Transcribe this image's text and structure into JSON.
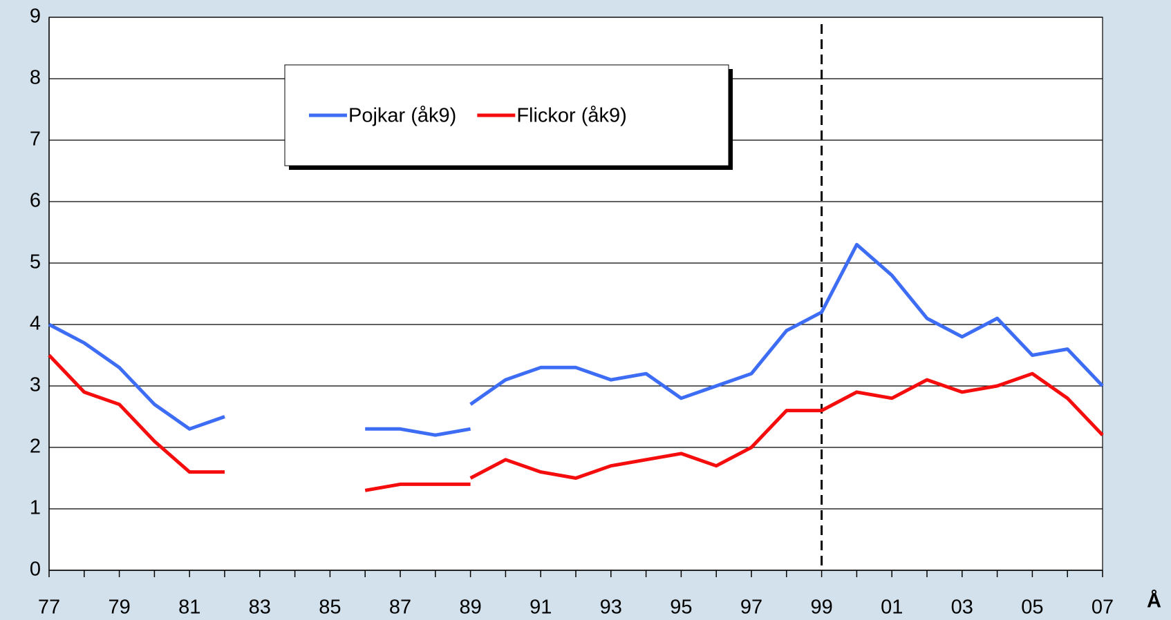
{
  "chart_data": {
    "type": "line",
    "x_label": "Å",
    "categories": [
      "77",
      null,
      "79",
      null,
      "81",
      null,
      "83",
      null,
      "85",
      null,
      "87",
      null,
      "89",
      null,
      "91",
      null,
      "93",
      null,
      "95",
      null,
      "97",
      null,
      "99",
      null,
      "01",
      null,
      "03",
      null,
      "05",
      null,
      "07"
    ],
    "series": [
      {
        "name": "Pojkar (åk9)",
        "color": "#3d6cf5",
        "values": [
          null,
          null,
          null,
          null,
          null,
          null,
          null,
          null,
          null,
          null,
          null,
          null,
          2.7,
          3.1,
          3.3,
          3.3,
          3.1,
          3.2,
          2.8,
          3.0,
          3.2,
          3.9,
          4.2,
          5.3,
          4.8,
          4.1,
          3.8,
          4.1,
          3.5,
          3.6,
          3.0
        ]
      },
      {
        "name": "Flickor (åk9)",
        "color": "#f50d0d",
        "values": [
          null,
          null,
          null,
          null,
          null,
          null,
          null,
          null,
          null,
          null,
          null,
          null,
          1.5,
          1.8,
          1.6,
          1.5,
          1.7,
          1.8,
          1.9,
          1.7,
          2.0,
          2.6,
          2.6,
          2.9,
          2.8,
          3.1,
          2.9,
          3.0,
          3.2,
          2.8,
          2.2
        ]
      },
      {
        "color": "#3d6cf5",
        "values": [
          4.0,
          3.7,
          3.3,
          2.7,
          2.3,
          2.5,
          null,
          null,
          null,
          2.3,
          2.3,
          2.2,
          2.3,
          null,
          null,
          null,
          null,
          null,
          null,
          null,
          null,
          null,
          null,
          null,
          null,
          null,
          null,
          null,
          null,
          null,
          null
        ]
      },
      {
        "color": "#f50d0d",
        "values": [
          3.5,
          2.9,
          2.7,
          2.1,
          1.6,
          1.6,
          null,
          null,
          null,
          1.3,
          1.4,
          1.4,
          1.4,
          null,
          null,
          null,
          null,
          null,
          null,
          null,
          null,
          null,
          null,
          null,
          null,
          null,
          null,
          null,
          null,
          null,
          null
        ]
      }
    ],
    "ylim": [
      0,
      9
    ],
    "yticks": [
      0,
      1,
      2,
      3,
      4,
      5,
      6,
      7,
      8,
      9
    ],
    "grid": true
  }
}
